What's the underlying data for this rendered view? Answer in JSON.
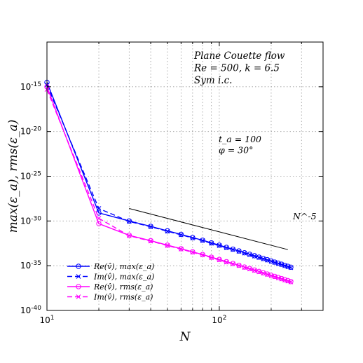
{
  "chart_data": {
    "type": "line",
    "title": "",
    "xlabel": "N",
    "ylabel": "max(ε_a), rms(ε_a)",
    "xscale": "log",
    "yscale": "log",
    "xlim": [
      10,
      400
    ],
    "ylim_exponent": [
      -40,
      -10
    ],
    "grid": true,
    "legend_position": "bottom-left",
    "x_tick_labels": [
      {
        "value": 10,
        "base": "10",
        "exp": "1"
      },
      {
        "value": 100,
        "base": "10",
        "exp": "2"
      }
    ],
    "y_tick_labels": [
      {
        "exp_value": -15,
        "base": "10",
        "exp": "-15"
      },
      {
        "exp_value": -20,
        "base": "10",
        "exp": "-20"
      },
      {
        "exp_value": -25,
        "base": "10",
        "exp": "-25"
      },
      {
        "exp_value": -30,
        "base": "10",
        "exp": "-30"
      },
      {
        "exp_value": -35,
        "base": "10",
        "exp": "-35"
      },
      {
        "exp_value": -40,
        "base": "10",
        "exp": "-40"
      }
    ],
    "annotation_flow": [
      "Plane Couette flow",
      "Re = 500,  k = 6.5",
      "Sym i.c."
    ],
    "annotation_params": [
      "t_a = 100",
      "φ = 30°"
    ],
    "slope_label": "N^-5",
    "series": [
      {
        "name": "Re(v̂),  max(ε_a)",
        "color": "#0000ff",
        "dash": "solid",
        "marker": "circle",
        "x": [
          10,
          20,
          30,
          40,
          50,
          60,
          70,
          80,
          90,
          100,
          110,
          120,
          130,
          140,
          150,
          160,
          170,
          180,
          190,
          200,
          210,
          220,
          230,
          240,
          250,
          260
        ],
        "log10_y": [
          -14.5,
          -29.1,
          -30.0,
          -30.6,
          -31.1,
          -31.5,
          -31.85,
          -32.15,
          -32.45,
          -32.7,
          -32.95,
          -33.15,
          -33.35,
          -33.55,
          -33.72,
          -33.88,
          -34.04,
          -34.19,
          -34.33,
          -34.47,
          -34.6,
          -34.72,
          -34.84,
          -34.96,
          -35.07,
          -35.17
        ]
      },
      {
        "name": "Im(v̂),  max(ε_a)",
        "color": "#0000ff",
        "dash": "dashed",
        "marker": "x",
        "x": [
          10,
          20,
          30,
          40,
          50,
          60,
          70,
          80,
          90,
          100,
          110,
          120,
          130,
          140,
          150,
          160,
          170,
          180,
          190,
          200,
          210,
          220,
          230,
          240,
          250,
          260
        ],
        "log10_y": [
          -14.8,
          -28.6,
          -30.05,
          -30.65,
          -31.15,
          -31.55,
          -31.9,
          -32.2,
          -32.5,
          -32.75,
          -33.0,
          -33.2,
          -33.4,
          -33.6,
          -33.77,
          -33.93,
          -34.09,
          -34.24,
          -34.38,
          -34.52,
          -34.65,
          -34.77,
          -34.89,
          -35.01,
          -35.12,
          -35.22
        ]
      },
      {
        "name": "Re(v̂),  rms(ε_a)",
        "color": "#ff00ff",
        "dash": "solid",
        "marker": "circle",
        "x": [
          10,
          20,
          30,
          40,
          50,
          60,
          70,
          80,
          90,
          100,
          110,
          120,
          130,
          140,
          150,
          160,
          170,
          180,
          190,
          200,
          210,
          220,
          230,
          240,
          250,
          260
        ],
        "log10_y": [
          -15.0,
          -30.3,
          -31.6,
          -32.2,
          -32.7,
          -33.1,
          -33.45,
          -33.75,
          -34.05,
          -34.3,
          -34.55,
          -34.75,
          -34.95,
          -35.15,
          -35.32,
          -35.48,
          -35.64,
          -35.79,
          -35.93,
          -36.07,
          -36.2,
          -36.32,
          -36.44,
          -36.56,
          -36.67,
          -36.77
        ]
      },
      {
        "name": "Im(v̂),  rms(ε_a)",
        "color": "#ff00ff",
        "dash": "dashed",
        "marker": "x",
        "x": [
          10,
          20,
          30,
          40,
          50,
          60,
          70,
          80,
          90,
          100,
          110,
          120,
          130,
          140,
          150,
          160,
          170,
          180,
          190,
          200,
          210,
          220,
          230,
          240,
          250,
          260
        ],
        "log10_y": [
          -15.3,
          -29.7,
          -31.65,
          -32.25,
          -32.75,
          -33.15,
          -33.5,
          -33.8,
          -34.1,
          -34.35,
          -34.6,
          -34.8,
          -35.0,
          -35.2,
          -35.37,
          -35.53,
          -35.69,
          -35.84,
          -35.98,
          -36.12,
          -36.25,
          -36.37,
          -36.49,
          -36.61,
          -36.72,
          -36.82
        ]
      },
      {
        "name": "",
        "color": "#000000",
        "dash": "solid",
        "marker": "none",
        "x": [
          30,
          250
        ],
        "log10_y": [
          -28.6,
          -33.2
        ]
      }
    ]
  }
}
